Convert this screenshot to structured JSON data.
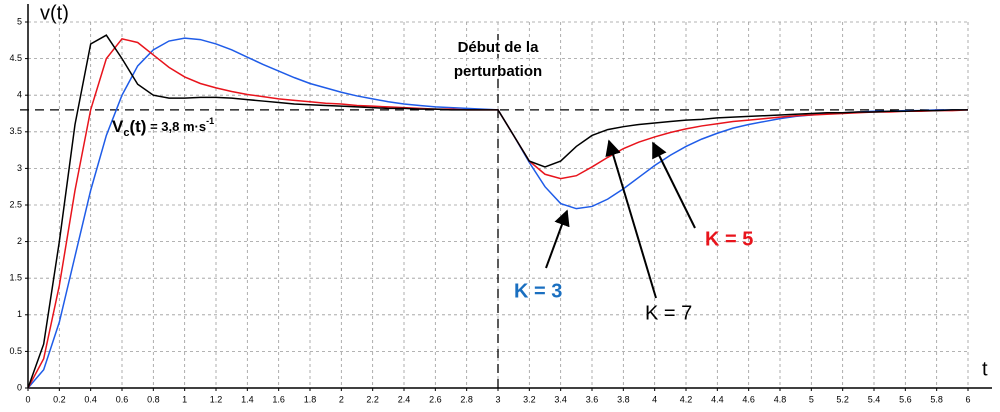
{
  "chart_data": {
    "type": "line",
    "ylabel": "v(t)",
    "xlabel": "t",
    "x": [
      0,
      0.1,
      0.2,
      0.3,
      0.4,
      0.5,
      0.6,
      0.7,
      0.8,
      0.9,
      1,
      1.1,
      1.2,
      1.3,
      1.4,
      1.5,
      1.6,
      1.7,
      1.8,
      1.9,
      2,
      2.1,
      2.2,
      2.3,
      2.4,
      2.5,
      2.6,
      2.7,
      2.8,
      2.9,
      3,
      3.1,
      3.2,
      3.3,
      3.4,
      3.5,
      3.6,
      3.7,
      3.8,
      3.9,
      4,
      4.1,
      4.2,
      4.3,
      4.4,
      4.5,
      4.6,
      4.7,
      4.8,
      4.9,
      5,
      5.1,
      5.2,
      5.3,
      5.4,
      5.5,
      5.6,
      5.7,
      5.8,
      5.9,
      6
    ],
    "series": [
      {
        "name": "K = 3",
        "color": "#1f5ce8",
        "label_color": "#1a6fc0",
        "values": [
          0,
          0.25,
          0.9,
          1.8,
          2.7,
          3.45,
          4.0,
          4.4,
          4.62,
          4.74,
          4.78,
          4.76,
          4.7,
          4.62,
          4.52,
          4.42,
          4.33,
          4.24,
          4.16,
          4.1,
          4.04,
          3.99,
          3.95,
          3.91,
          3.88,
          3.86,
          3.84,
          3.83,
          3.82,
          3.81,
          3.8,
          3.45,
          3.08,
          2.75,
          2.52,
          2.45,
          2.48,
          2.58,
          2.72,
          2.88,
          3.04,
          3.18,
          3.3,
          3.4,
          3.48,
          3.55,
          3.6,
          3.64,
          3.68,
          3.71,
          3.73,
          3.75,
          3.76,
          3.77,
          3.78,
          3.78,
          3.79,
          3.79,
          3.8,
          3.8,
          3.8
        ]
      },
      {
        "name": "K = 5",
        "color": "#e8141c",
        "label_color": "#e8141c",
        "values": [
          0,
          0.4,
          1.4,
          2.7,
          3.8,
          4.5,
          4.77,
          4.72,
          4.55,
          4.38,
          4.25,
          4.16,
          4.1,
          4.05,
          4.01,
          3.98,
          3.95,
          3.93,
          3.91,
          3.89,
          3.88,
          3.86,
          3.85,
          3.84,
          3.83,
          3.82,
          3.81,
          3.81,
          3.8,
          3.8,
          3.8,
          3.45,
          3.1,
          2.92,
          2.86,
          2.9,
          3.02,
          3.15,
          3.27,
          3.36,
          3.43,
          3.49,
          3.54,
          3.58,
          3.61,
          3.64,
          3.66,
          3.68,
          3.7,
          3.72,
          3.73,
          3.74,
          3.75,
          3.76,
          3.77,
          3.77,
          3.78,
          3.78,
          3.79,
          3.79,
          3.8
        ]
      },
      {
        "name": "K = 7",
        "color": "#000000",
        "label_color": "#000000",
        "values": [
          0,
          0.6,
          2.0,
          3.6,
          4.7,
          4.82,
          4.5,
          4.15,
          4.0,
          3.96,
          3.96,
          3.97,
          3.97,
          3.96,
          3.94,
          3.92,
          3.9,
          3.88,
          3.87,
          3.86,
          3.85,
          3.84,
          3.83,
          3.82,
          3.82,
          3.81,
          3.81,
          3.8,
          3.8,
          3.8,
          3.8,
          3.45,
          3.1,
          3.02,
          3.1,
          3.3,
          3.45,
          3.53,
          3.57,
          3.6,
          3.62,
          3.64,
          3.66,
          3.67,
          3.69,
          3.7,
          3.71,
          3.72,
          3.73,
          3.74,
          3.75,
          3.76,
          3.76,
          3.77,
          3.77,
          3.78,
          3.78,
          3.79,
          3.79,
          3.8,
          3.8
        ]
      }
    ],
    "xlim": [
      0,
      6
    ],
    "ylim": [
      0,
      5
    ],
    "xticks": [
      0,
      0.2,
      0.4,
      0.6,
      0.8,
      1,
      1.2,
      1.4,
      1.6,
      1.8,
      2,
      2.2,
      2.4,
      2.6,
      2.8,
      3,
      3.2,
      3.4,
      3.6,
      3.8,
      4,
      4.2,
      4.4,
      4.6,
      4.8,
      5,
      5.2,
      5.4,
      5.6,
      5.8,
      6
    ],
    "yticks": [
      0,
      0.5,
      1,
      1.5,
      2,
      2.5,
      3,
      3.5,
      4,
      4.5,
      5
    ],
    "grid": true,
    "reference_y": 3.8,
    "disturbance_x": 3,
    "disturbance_label": [
      "Début de la",
      "perturbation"
    ],
    "reference_label": [
      "V",
      "c",
      "(t)",
      " = 3,8 m·s",
      "-1"
    ]
  }
}
